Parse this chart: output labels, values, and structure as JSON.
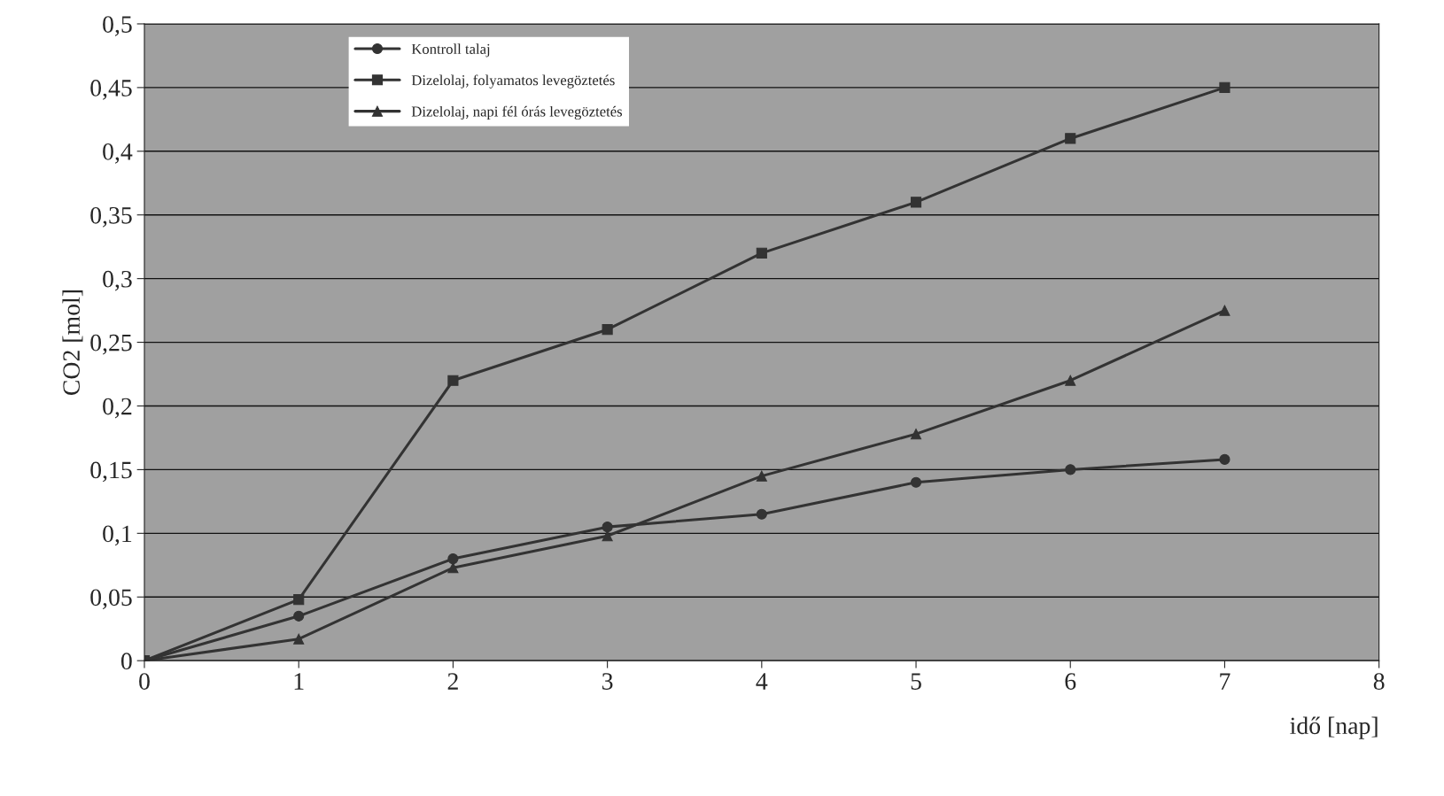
{
  "chart_data": {
    "type": "line",
    "xlabel": "idő [nap]",
    "ylabel": "CO2 [mol]",
    "x": [
      0,
      1,
      2,
      3,
      4,
      5,
      6,
      7
    ],
    "series": [
      {
        "name": "Kontroll talaj",
        "color": "#333333",
        "marker": "circle",
        "values": [
          0,
          0.035,
          0.08,
          0.105,
          0.115,
          0.14,
          0.15,
          0.158
        ]
      },
      {
        "name": "Dizelolaj, folyamatos levegöztetés",
        "color": "#333333",
        "marker": "square",
        "values": [
          0,
          0.048,
          0.22,
          0.26,
          0.32,
          0.36,
          0.41,
          0.45
        ]
      },
      {
        "name": "Dizelolaj, napi fél órás levegöztetés",
        "color": "#333333",
        "marker": "triangle",
        "values": [
          0,
          0.017,
          0.073,
          0.098,
          0.145,
          0.178,
          0.22,
          0.275
        ]
      }
    ],
    "xlim": [
      0,
      8
    ],
    "xticks": [
      0,
      1,
      2,
      3,
      4,
      5,
      6,
      7,
      8
    ],
    "ylim": [
      0,
      0.5
    ],
    "yticks": [
      0,
      {
        "value": 0.05,
        "label": "0,05"
      },
      {
        "value": 0.1,
        "label": "0,1"
      },
      {
        "value": 0.15,
        "label": "0,15"
      },
      {
        "value": 0.2,
        "label": "0,2"
      },
      {
        "value": 0.25,
        "label": "0,25"
      },
      {
        "value": 0.3,
        "label": "0,3"
      },
      {
        "value": 0.35,
        "label": "0,35"
      },
      {
        "value": 0.4,
        "label": "0,4"
      },
      {
        "value": 0.45,
        "label": "0,45"
      },
      {
        "value": 0.5,
        "label": "0,5"
      }
    ],
    "grid": "y",
    "legend": "top left",
    "line_style": "solid"
  }
}
